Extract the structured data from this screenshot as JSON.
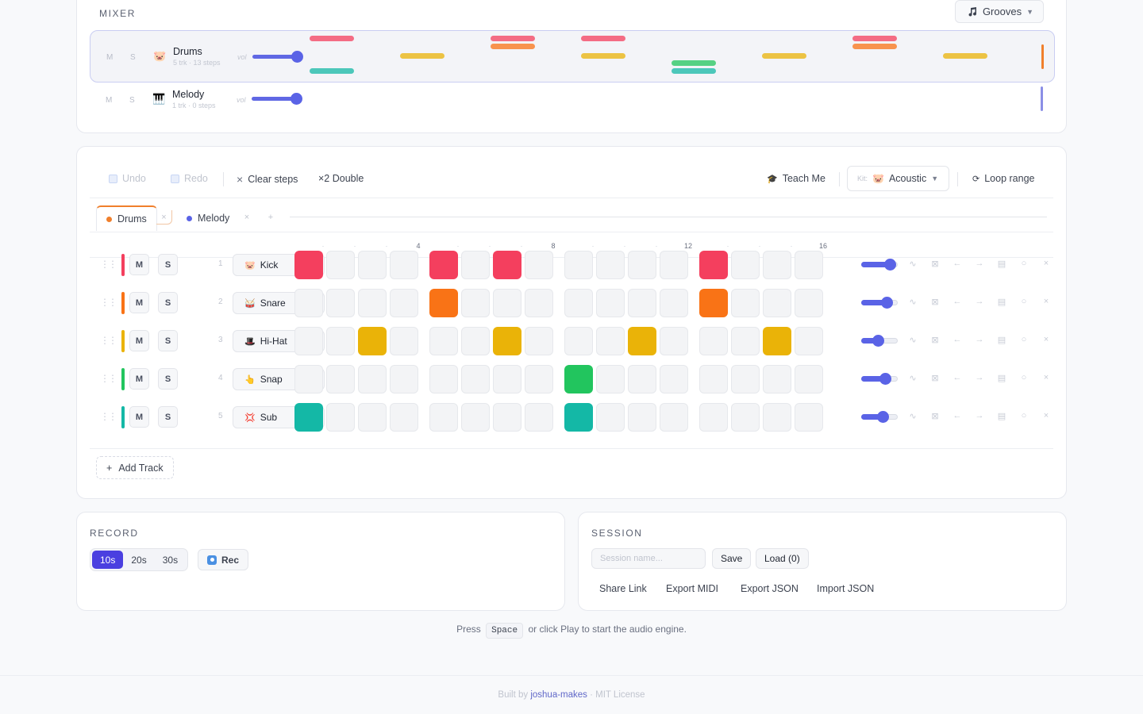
{
  "mixer": {
    "title": "MIXER",
    "grooves_label": "Grooves",
    "tracks": [
      {
        "m": "M",
        "s": "S",
        "icon": "🐷",
        "name": "Drums",
        "sub": "5 trk · 13 steps",
        "vol_label": "vol"
      },
      {
        "m": "M",
        "s": "S",
        "icon": "🎹",
        "name": "Melody",
        "sub": "1 trk · 0 steps",
        "vol_label": "vol"
      }
    ]
  },
  "toolbar": {
    "undo": "Undo",
    "redo": "Redo",
    "clear": "Clear steps",
    "double": "×2 Double",
    "teach": "Teach Me",
    "kit_label": "Kit:",
    "kit_value": "Acoustic",
    "loop": "Loop range"
  },
  "tabs": [
    {
      "label": "Drums",
      "color": "#f07f2c"
    },
    {
      "label": "Melody",
      "color": "#5a63e6"
    }
  ],
  "step_labels": [
    "4",
    "8",
    "12",
    "16"
  ],
  "tracks": [
    {
      "num": "1",
      "m": "M",
      "s": "S",
      "instrument": "Kick",
      "icon": "🐷",
      "color": "#f43f5e",
      "steps": [
        1,
        0,
        0,
        0,
        1,
        0,
        1,
        0,
        0,
        0,
        0,
        0,
        1,
        0,
        0,
        0
      ],
      "volume": 0.8
    },
    {
      "num": "2",
      "m": "M",
      "s": "S",
      "instrument": "Snare",
      "icon": "🥁",
      "color": "#f97316",
      "steps": [
        0,
        0,
        0,
        0,
        1,
        0,
        0,
        0,
        0,
        0,
        0,
        0,
        1,
        0,
        0,
        0
      ],
      "volume": 0.7
    },
    {
      "num": "3",
      "m": "M",
      "s": "S",
      "instrument": "Hi-Hat",
      "icon": "🎩",
      "color": "#eab308",
      "steps": [
        0,
        0,
        1,
        0,
        0,
        0,
        1,
        0,
        0,
        0,
        1,
        0,
        0,
        0,
        1,
        0
      ],
      "volume": 0.45
    },
    {
      "num": "4",
      "m": "M",
      "s": "S",
      "instrument": "Snap",
      "icon": "👆",
      "color": "#22c55e",
      "steps": [
        0,
        0,
        0,
        0,
        0,
        0,
        0,
        0,
        1,
        0,
        0,
        0,
        0,
        0,
        0,
        0
      ],
      "volume": 0.65
    },
    {
      "num": "5",
      "m": "M",
      "s": "S",
      "instrument": "Sub",
      "icon": "💢",
      "color": "#14b8a6",
      "steps": [
        1,
        0,
        0,
        0,
        0,
        0,
        0,
        0,
        1,
        0,
        0,
        0,
        0,
        0,
        0,
        0
      ],
      "volume": 0.6
    }
  ],
  "add_track": "Add Track",
  "record": {
    "title": "RECORD",
    "durations": [
      "10s",
      "20s",
      "30s"
    ],
    "active_duration": "10s",
    "rec_label": "Rec"
  },
  "session": {
    "title": "SESSION",
    "placeholder": "Session name...",
    "save": "Save",
    "load": "Load (0)",
    "links": [
      "Share Link",
      "Export MIDI",
      "Export JSON",
      "Import JSON"
    ]
  },
  "hint": {
    "pre": "Press",
    "key": "Space",
    "post": "or click Play to start the audio engine."
  },
  "footer": {
    "pre": "Built by",
    "author": "joshua-makes",
    "post": "· MIT License"
  }
}
